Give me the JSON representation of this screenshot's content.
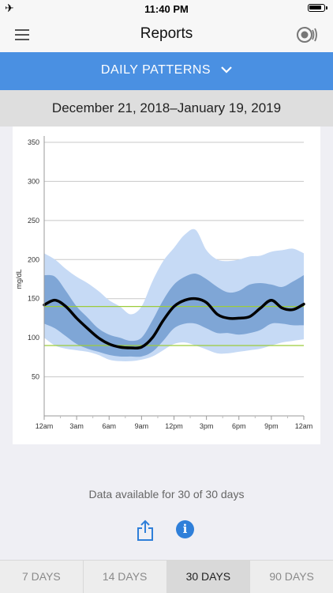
{
  "status_bar": {
    "time": "11:40 PM"
  },
  "header": {
    "title": "Reports"
  },
  "report_selector": {
    "label": "DAILY PATTERNS"
  },
  "date_range": "December 21, 2018–January 19, 2019",
  "availability": "Data available for 30 of 30 days",
  "tabs": [
    {
      "label": "7 DAYS",
      "active": false
    },
    {
      "label": "14 DAYS",
      "active": false
    },
    {
      "label": "30 DAYS",
      "active": true
    },
    {
      "label": "90 DAYS",
      "active": false
    }
  ],
  "colors": {
    "accent": "#4a90e2",
    "outer_band": "#c6daf5",
    "inner_band": "#7fa6d6",
    "median": "#000000",
    "target_lines": "#9ccc3a"
  },
  "chart_data": {
    "type": "area",
    "ylabel": "mg/dL",
    "ylim": [
      0,
      350
    ],
    "y_ticks": [
      50,
      100,
      150,
      200,
      250,
      300,
      350
    ],
    "x_ticks": [
      "12am",
      "3am",
      "6am",
      "9am",
      "12pm",
      "3pm",
      "6pm",
      "9pm",
      "12am"
    ],
    "x_hours": [
      0,
      1,
      2,
      3,
      4,
      5,
      6,
      7,
      8,
      9,
      10,
      11,
      12,
      13,
      14,
      15,
      16,
      17,
      18,
      19,
      20,
      21,
      22,
      23,
      24
    ],
    "target_range": [
      90,
      140
    ],
    "series": [
      {
        "role": "p90",
        "values": [
          208,
          200,
          188,
          178,
          170,
          160,
          148,
          140,
          130,
          140,
          172,
          198,
          215,
          232,
          238,
          212,
          200,
          198,
          200,
          204,
          205,
          210,
          212,
          214,
          208
        ]
      },
      {
        "role": "p75",
        "values": [
          180,
          178,
          160,
          140,
          126,
          112,
          104,
          100,
          96,
          100,
          122,
          148,
          168,
          178,
          182,
          175,
          165,
          158,
          160,
          168,
          170,
          168,
          165,
          172,
          180
        ]
      },
      {
        "role": "median",
        "values": [
          142,
          148,
          140,
          125,
          112,
          100,
          92,
          88,
          87,
          88,
          100,
          122,
          140,
          148,
          150,
          145,
          130,
          125,
          125,
          127,
          138,
          148,
          138,
          136,
          143
        ]
      },
      {
        "role": "p25",
        "values": [
          118,
          112,
          102,
          92,
          86,
          82,
          78,
          76,
          76,
          76,
          82,
          96,
          112,
          118,
          118,
          112,
          106,
          106,
          104,
          106,
          110,
          118,
          118,
          116,
          116
        ]
      },
      {
        "role": "p10",
        "values": [
          100,
          90,
          86,
          84,
          82,
          78,
          72,
          70,
          70,
          72,
          76,
          84,
          92,
          94,
          90,
          85,
          80,
          80,
          82,
          84,
          86,
          90,
          94,
          96,
          98
        ]
      }
    ]
  }
}
